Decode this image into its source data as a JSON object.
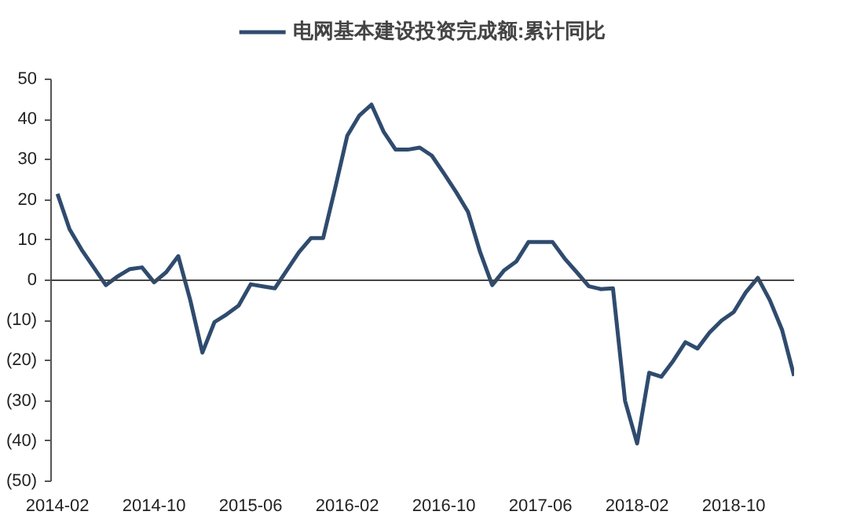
{
  "chart_data": {
    "type": "line",
    "x": [
      "2014-02",
      "2014-03",
      "2014-04",
      "2014-05",
      "2014-06",
      "2014-07",
      "2014-08",
      "2014-09",
      "2014-10",
      "2014-11",
      "2014-12",
      "2015-01",
      "2015-02",
      "2015-03",
      "2015-04",
      "2015-05",
      "2015-06",
      "2015-07",
      "2015-08",
      "2015-09",
      "2015-10",
      "2015-11",
      "2015-12",
      "2016-01",
      "2016-02",
      "2016-03",
      "2016-04",
      "2016-05",
      "2016-06",
      "2016-07",
      "2016-08",
      "2016-09",
      "2016-10",
      "2016-11",
      "2016-12",
      "2017-01",
      "2017-02",
      "2017-03",
      "2017-04",
      "2017-05",
      "2017-06",
      "2017-07",
      "2017-08",
      "2017-09",
      "2017-10",
      "2017-11",
      "2017-12",
      "2018-01",
      "2018-02",
      "2018-03",
      "2018-04",
      "2018-05",
      "2018-06",
      "2018-07",
      "2018-08",
      "2018-09",
      "2018-10",
      "2018-11",
      "2018-12",
      "2019-01",
      "2019-02",
      "2019-03"
    ],
    "series": [
      {
        "name": "电网基本建设投资完成额:累计同比",
        "color": "#2f4b6e",
        "values": [
          21.5,
          12.7,
          7.6,
          3.2,
          -1.2,
          1,
          2.8,
          3.2,
          -0.5,
          2,
          6,
          -5,
          -18,
          -10.4,
          -8.5,
          -6.3,
          -1,
          -1.5,
          -2,
          2.5,
          7,
          10.5,
          10.5,
          23,
          36,
          41,
          43.7,
          37,
          32.5,
          32.5,
          33,
          31,
          26.6,
          22,
          17,
          7,
          -1.2,
          2.5,
          4.7,
          9.5,
          9.5,
          9.5,
          5.4,
          2,
          -1.5,
          -2.2,
          -2,
          -30,
          -40.6,
          -23,
          -24,
          -20,
          -15.4,
          -17,
          -13,
          -10,
          -7.9,
          -3,
          0.6,
          -5,
          -12.3,
          -23.8
        ]
      }
    ],
    "xlim": [
      "2014-01-15",
      "2019-03-01"
    ],
    "xticks": [
      {
        "value": "2014-02",
        "label": "2014-02"
      },
      {
        "value": "2014-10",
        "label": "2014-10"
      },
      {
        "value": "2015-06",
        "label": "2015-06"
      },
      {
        "value": "2016-02",
        "label": "2016-02"
      },
      {
        "value": "2016-10",
        "label": "2016-10"
      },
      {
        "value": "2017-06",
        "label": "2017-06"
      },
      {
        "value": "2018-02",
        "label": "2018-02"
      },
      {
        "value": "2018-10",
        "label": "2018-10"
      }
    ],
    "ylim": [
      -50,
      50
    ],
    "yticks": [
      {
        "value": -50,
        "label": "(50)"
      },
      {
        "value": -40,
        "label": "(40)"
      },
      {
        "value": -30,
        "label": "(30)"
      },
      {
        "value": -20,
        "label": "(20)"
      },
      {
        "value": -10,
        "label": "(10)"
      },
      0,
      10,
      20,
      30,
      40,
      50
    ],
    "ref_lines": [
      {
        "axis": "y",
        "value": 0
      }
    ],
    "grid": false,
    "legend": "top",
    "marker": "none",
    "line_style": "solid"
  }
}
